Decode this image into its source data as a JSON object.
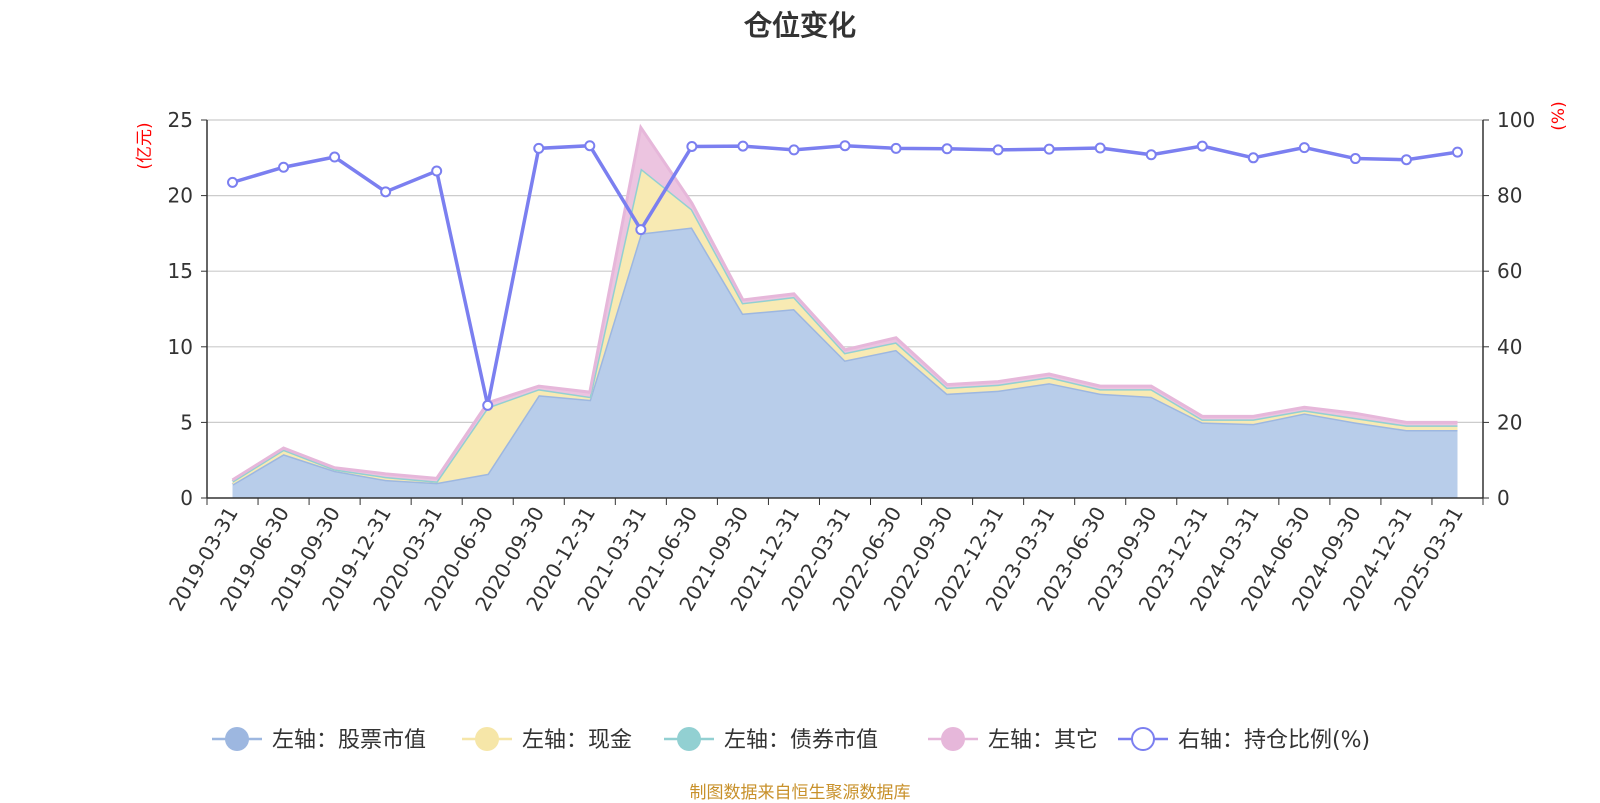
{
  "chart_data": {
    "type": "area",
    "title": "仓位变化",
    "left_axis_unit": "(亿元)",
    "right_axis_unit": "(%)",
    "left_ylim": [
      0,
      25
    ],
    "left_ticks": [
      0,
      5,
      10,
      15,
      20,
      25
    ],
    "right_ylim": [
      0,
      100
    ],
    "right_ticks": [
      0,
      20,
      40,
      60,
      80,
      100
    ],
    "grid": true,
    "legend_position": "bottom",
    "categories": [
      "2019-03-31",
      "2019-06-30",
      "2019-09-30",
      "2019-12-31",
      "2020-03-31",
      "2020-06-30",
      "2020-09-30",
      "2020-12-31",
      "2021-03-31",
      "2021-06-30",
      "2021-09-30",
      "2021-12-31",
      "2022-03-31",
      "2022-06-30",
      "2022-09-30",
      "2022-12-31",
      "2023-03-31",
      "2023-06-30",
      "2023-09-30",
      "2023-12-31",
      "2024-03-31",
      "2024-06-30",
      "2024-09-30",
      "2024-12-31",
      "2025-03-31"
    ],
    "series": [
      {
        "name": "左轴：股票市值",
        "axis": "left",
        "kind": "stacked-area",
        "color": "#9db7e0",
        "fill": "#b8cdea",
        "values": [
          0.9,
          2.9,
          1.8,
          1.2,
          1.0,
          1.6,
          6.8,
          6.5,
          17.5,
          17.9,
          12.2,
          12.5,
          9.1,
          9.8,
          6.9,
          7.1,
          7.6,
          6.9,
          6.7,
          5.0,
          4.9,
          5.6,
          5.0,
          4.5,
          4.5
        ]
      },
      {
        "name": "左轴：现金",
        "axis": "left",
        "kind": "stacked-area",
        "color": "#f6e6a8",
        "fill": "#f8eab3",
        "values": [
          0.2,
          0.3,
          0.1,
          0.2,
          0.1,
          4.4,
          0.4,
          0.2,
          4.3,
          1.2,
          0.7,
          0.8,
          0.5,
          0.5,
          0.4,
          0.4,
          0.4,
          0.3,
          0.5,
          0.2,
          0.3,
          0.2,
          0.3,
          0.3,
          0.3
        ]
      },
      {
        "name": "左轴：债券市值",
        "axis": "left",
        "kind": "stacked-area",
        "color": "#92d0d2",
        "fill": "#a8dadc",
        "values": [
          0,
          0,
          0,
          0,
          0,
          0,
          0,
          0,
          0,
          0,
          0,
          0,
          0,
          0,
          0,
          0,
          0,
          0,
          0,
          0,
          0,
          0,
          0,
          0,
          0
        ]
      },
      {
        "name": "左轴：其它",
        "axis": "left",
        "kind": "stacked-area",
        "color": "#e6b7da",
        "fill": "#ecc4e0",
        "values": [
          0.1,
          0.1,
          0.1,
          0.2,
          0.2,
          0.3,
          0.2,
          0.3,
          2.7,
          0.4,
          0.2,
          0.2,
          0.2,
          0.3,
          0.2,
          0.2,
          0.2,
          0.2,
          0.2,
          0.2,
          0.2,
          0.2,
          0.3,
          0.2,
          0.2
        ]
      },
      {
        "name": "右轴：持仓比例(%)",
        "axis": "right",
        "kind": "line",
        "color": "#7b7ff0",
        "values": [
          83.5,
          87.5,
          90.2,
          81.0,
          86.5,
          24.5,
          92.5,
          93.2,
          71.0,
          93.0,
          93.1,
          92.1,
          93.2,
          92.5,
          92.4,
          92.1,
          92.3,
          92.6,
          90.8,
          93.1,
          90.0,
          92.7,
          89.8,
          89.5,
          91.5
        ]
      }
    ]
  },
  "footer": {
    "source_note": "制图数据来自恒生聚源数据库"
  }
}
